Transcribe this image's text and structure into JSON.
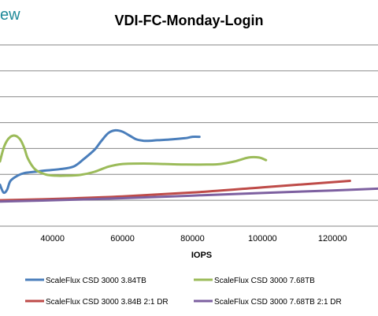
{
  "brand_fragment": "ew",
  "colors": {
    "blue": "#4a7ebb",
    "red": "#be4b48",
    "green": "#9bbb59",
    "purple": "#7d60a0",
    "grid": "#868686",
    "brand": "#1f8a99"
  },
  "chart_data": {
    "type": "line",
    "title": "VDI-FC-Monday-Login",
    "xlabel": "IOPS",
    "ylabel": "",
    "x_ticks": [
      "40000",
      "60000",
      "80000",
      "100000",
      "120000"
    ],
    "xlim": [
      25000,
      133000
    ],
    "ylim": [
      0,
      7
    ],
    "grid": true,
    "legend_position": "bottom",
    "series": [
      {
        "name": "ScaleFlux CSD 3000 3.84TB",
        "color": "#4a7ebb",
        "x": [
          25000,
          26000,
          27000,
          28000,
          30000,
          32000,
          35000,
          38000,
          42000,
          46000,
          49000,
          52000,
          54000,
          56000,
          58000,
          60000,
          62000,
          64000,
          66000,
          68000,
          70000,
          74000,
          78000,
          80000,
          82000
        ],
        "y": [
          1.6,
          1.3,
          1.4,
          1.75,
          1.95,
          2.05,
          2.1,
          2.15,
          2.2,
          2.3,
          2.6,
          2.95,
          3.3,
          3.6,
          3.7,
          3.65,
          3.5,
          3.35,
          3.3,
          3.3,
          3.32,
          3.35,
          3.4,
          3.45,
          3.45
        ]
      },
      {
        "name": "ScaleFlux CSD 3000 7.68TB",
        "color": "#9bbb59",
        "x": [
          25000,
          26000,
          27000,
          28000,
          29000,
          30000,
          31000,
          32000,
          33000,
          35000,
          38000,
          41000,
          44000,
          48000,
          52000,
          56000,
          60000,
          66000,
          72000,
          78000,
          84000,
          88000,
          92000,
          96000,
          99000,
          101000
        ],
        "y": [
          2.5,
          3.0,
          3.3,
          3.45,
          3.5,
          3.45,
          3.3,
          3.0,
          2.6,
          2.2,
          2.0,
          1.95,
          1.95,
          1.98,
          2.1,
          2.3,
          2.4,
          2.42,
          2.4,
          2.38,
          2.38,
          2.4,
          2.5,
          2.65,
          2.65,
          2.55
        ]
      },
      {
        "name": "ScaleFlux CSD 3000 3.84B 2:1 DR",
        "color": "#be4b48",
        "x": [
          25000,
          40000,
          60000,
          80000,
          100000,
          125000
        ],
        "y": [
          1.0,
          1.05,
          1.15,
          1.3,
          1.5,
          1.75
        ]
      },
      {
        "name": "ScaleFlux CSD 3000 7.68TB 2:1 DR",
        "color": "#7d60a0",
        "x": [
          25000,
          40000,
          60000,
          80000,
          100000,
          120000,
          133000
        ],
        "y": [
          0.95,
          1.0,
          1.08,
          1.18,
          1.28,
          1.38,
          1.45
        ]
      }
    ]
  }
}
